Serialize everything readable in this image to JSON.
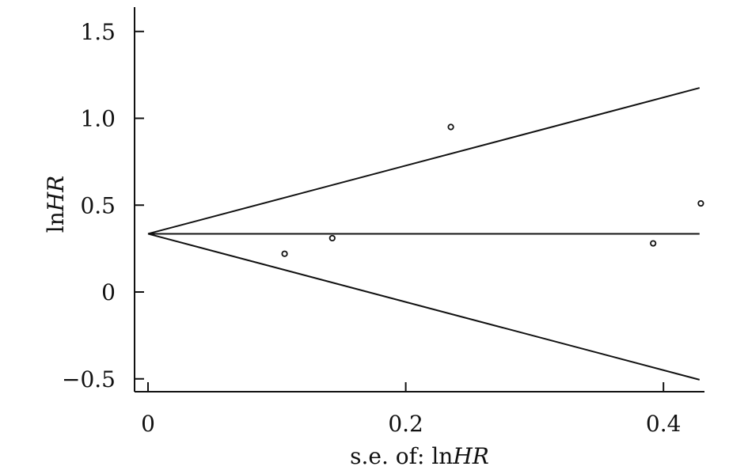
{
  "chart_data": {
    "type": "scatter",
    "title": "",
    "xlabel": "s.e. of: ln",
    "xlabel_italic": "HR",
    "ylabel": "ln",
    "ylabel_italic": "HR",
    "xlim": [
      0,
      0.43
    ],
    "ylim": [
      -0.55,
      1.65
    ],
    "x_ticks": [
      0,
      0.2,
      0.4
    ],
    "x_tick_labels": [
      "0",
      "0.2",
      "0.4"
    ],
    "y_ticks": [
      -0.5,
      0,
      0.5,
      1.0,
      1.5
    ],
    "y_tick_labels": [
      "−0.5",
      "0",
      "0.5",
      "1.0",
      "1.5"
    ],
    "grid": false,
    "points": [
      {
        "x": 0.106,
        "y": 0.22
      },
      {
        "x": 0.143,
        "y": 0.31
      },
      {
        "x": 0.235,
        "y": 0.95
      },
      {
        "x": 0.392,
        "y": 0.28
      },
      {
        "x": 0.429,
        "y": 0.51
      }
    ],
    "pooled_estimate": 0.335,
    "pseudo_ci_limits": {
      "x_end": 0.428,
      "upper_end": 1.175,
      "lower_end": -0.505
    }
  }
}
